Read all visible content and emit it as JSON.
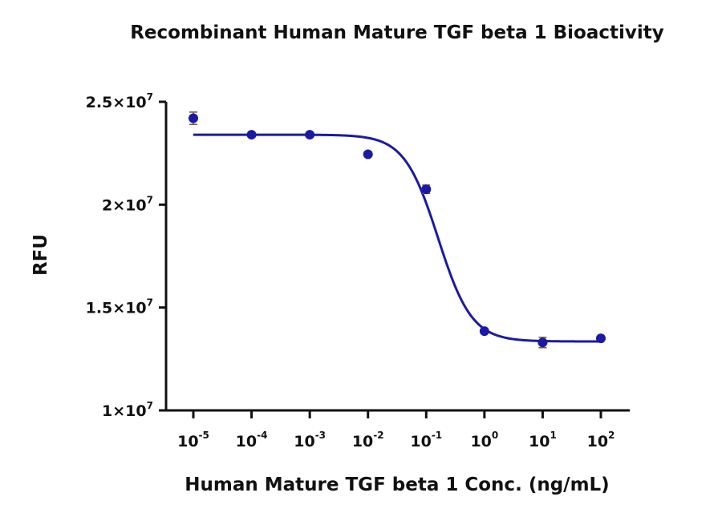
{
  "chart_data": {
    "type": "scatter",
    "title": "Recombinant Human Mature TGF beta 1 Bioactivity",
    "xlabel": "Human Mature TGF beta 1 Conc. (ng/mL)",
    "ylabel": "RFU",
    "x_scale": "log",
    "x_ticks": [
      {
        "base": "10",
        "exp": "-5",
        "value": 1e-05
      },
      {
        "base": "10",
        "exp": "-4",
        "value": 0.0001
      },
      {
        "base": "10",
        "exp": "-3",
        "value": 0.001
      },
      {
        "base": "10",
        "exp": "-2",
        "value": 0.01
      },
      {
        "base": "10",
        "exp": "-1",
        "value": 0.1
      },
      {
        "base": "10",
        "exp": "0",
        "value": 1
      },
      {
        "base": "10",
        "exp": "1",
        "value": 10
      },
      {
        "base": "10",
        "exp": "2",
        "value": 100
      }
    ],
    "y_ticks": [
      {
        "mantissa": "1",
        "base": "10",
        "exp": "7",
        "value": 10000000
      },
      {
        "mantissa": "1.5",
        "base": "10",
        "exp": "7",
        "value": 15000000
      },
      {
        "mantissa": "2",
        "base": "10",
        "exp": "7",
        "value": 20000000
      },
      {
        "mantissa": "2.5",
        "base": "10",
        "exp": "7",
        "value": 25000000
      }
    ],
    "ylim": [
      10000000,
      25000000
    ],
    "xlim": [
      1e-05,
      100
    ],
    "grid": false,
    "series": [
      {
        "points": [
          {
            "x": 1e-05,
            "y": 24200000,
            "err": 300000
          },
          {
            "x": 0.0001,
            "y": 23400000,
            "err": 0
          },
          {
            "x": 0.001,
            "y": 23400000,
            "err": 0
          },
          {
            "x": 0.01,
            "y": 22450000,
            "err": 0
          },
          {
            "x": 0.1,
            "y": 20750000,
            "err": 200000
          },
          {
            "x": 1,
            "y": 13850000,
            "err": 0
          },
          {
            "x": 10,
            "y": 13300000,
            "err": 250000
          },
          {
            "x": 100,
            "y": 13500000,
            "err": 0
          }
        ]
      }
    ],
    "fit": {
      "top": 23400000,
      "bottom": 13350000,
      "ec50": 0.16,
      "hill": 1.5
    },
    "colors": {
      "series": "#1a1aa6",
      "error_bars": "#7a5a3a",
      "axis": "#111111"
    }
  }
}
